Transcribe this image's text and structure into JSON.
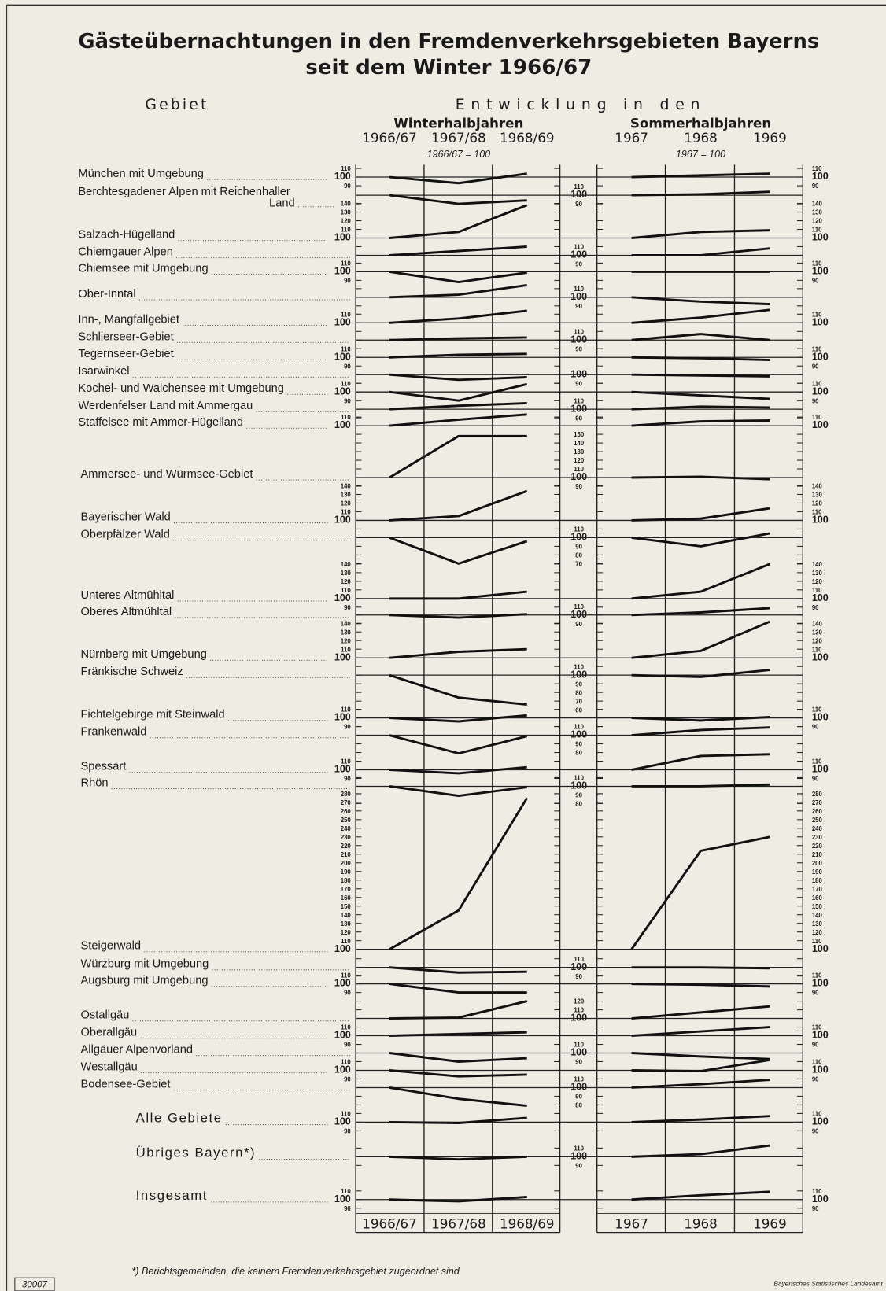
{
  "title": [
    "Gästeübernachtungen in den Fremdenverkehrsgebieten Bayerns",
    "seit dem Winter 1966/67"
  ],
  "column_header": "Gebiet",
  "development_header": "Entwicklung in den",
  "winter_header": "Winterhalbjahren",
  "summer_header": "Sommerhalbjahren",
  "winter_years": [
    "1966/67",
    "1967/68",
    "1968/69"
  ],
  "summer_years": [
    "1967",
    "1968",
    "1969"
  ],
  "winter_note": "1966/67 = 100",
  "summer_note": "1967 = 100",
  "index_base": 100,
  "footnote": "*) Berichtsgemeinden, die keinem Fremdenverkehrsgebiet zugeordnet sind",
  "sheet_number": "30007",
  "publisher": "Bayerisches Statistisches Landesamt",
  "regions": [
    {
      "name": "München mit Umgebung",
      "winter": [
        100,
        93,
        104
      ],
      "summer": [
        100,
        102,
        104
      ],
      "scale": [
        110,
        100,
        90
      ]
    },
    {
      "name": [
        "Berchtesgadener Alpen mit Reichenhaller",
        "Land"
      ],
      "winter": [
        100,
        90,
        94
      ],
      "summer": [
        100,
        101,
        104
      ],
      "scale": [
        110,
        100,
        90
      ]
    },
    {
      "name": "Salzach-Hügelland",
      "winter": [
        100,
        107,
        138
      ],
      "summer": [
        100,
        107,
        109
      ],
      "scale": [
        140,
        130,
        120,
        110,
        100
      ]
    },
    {
      "name": "Chiemgauer Alpen",
      "winter": [
        100,
        105,
        110
      ],
      "summer": [
        100,
        100,
        108
      ],
      "scale": [
        110,
        100,
        90
      ]
    },
    {
      "name": "Chiemsee mit Umgebung",
      "winter": [
        100,
        88,
        99
      ],
      "summer": [
        100,
        100,
        100
      ],
      "scale": [
        110,
        100,
        90
      ]
    },
    {
      "name": "Ober-Inntal",
      "winter": [
        100,
        103,
        114
      ],
      "summer": [
        100,
        95,
        92
      ],
      "scale": [
        110,
        100,
        90
      ]
    },
    {
      "name": "Inn-, Mangfallgebiet",
      "winter": [
        100,
        105,
        114
      ],
      "summer": [
        100,
        106,
        115
      ],
      "scale": [
        110,
        100
      ]
    },
    {
      "name": "Schlierseer-Gebiet",
      "winter": [
        100,
        102,
        103
      ],
      "summer": [
        100,
        107,
        100
      ],
      "scale": [
        110,
        100,
        90
      ]
    },
    {
      "name": "Tegernseer-Gebiet",
      "winter": [
        100,
        103,
        104
      ],
      "summer": [
        100,
        99,
        97
      ],
      "scale": [
        110,
        100,
        90
      ]
    },
    {
      "name": "Isarwinkel",
      "winter": [
        100,
        94,
        97
      ],
      "summer": [
        100,
        99,
        98
      ],
      "scale": [
        100,
        90
      ]
    },
    {
      "name": "Kochel- und Walchensee mit Umgebung",
      "winter": [
        100,
        90,
        109
      ],
      "summer": [
        100,
        96,
        92
      ],
      "scale": [
        110,
        100,
        90
      ]
    },
    {
      "name": "Werdenfelser Land mit Ammergau",
      "winter": [
        100,
        104,
        107
      ],
      "summer": [
        100,
        103,
        102
      ],
      "scale": [
        110,
        100,
        90
      ]
    },
    {
      "name": "Staffelsee mit Ammer-Hügelland",
      "winter": [
        100,
        107,
        113
      ],
      "summer": [
        100,
        105,
        106
      ],
      "scale": [
        110,
        100
      ]
    },
    {
      "name": "Ammersee- und Würmsee-Gebiet",
      "winter": [
        100,
        148,
        148
      ],
      "summer": [
        100,
        101,
        98
      ],
      "scale": [
        150,
        140,
        130,
        120,
        110,
        100,
        90
      ]
    },
    {
      "name": "Bayerischer Wald",
      "winter": [
        100,
        105,
        134
      ],
      "summer": [
        100,
        102,
        114
      ],
      "scale": [
        140,
        130,
        120,
        110,
        100
      ]
    },
    {
      "name": "Oberpfälzer Wald",
      "winter": [
        100,
        70,
        96
      ],
      "summer": [
        100,
        90,
        105
      ],
      "scale": [
        110,
        100,
        90,
        80,
        70
      ]
    },
    {
      "name": "Unteres Altmühltal",
      "winter": [
        100,
        100,
        108
      ],
      "summer": [
        100,
        108,
        140
      ],
      "scale": [
        140,
        130,
        120,
        110,
        100,
        90
      ]
    },
    {
      "name": "Oberes Altmühltal",
      "winter": [
        100,
        97,
        101
      ],
      "summer": [
        100,
        103,
        108
      ],
      "scale": [
        110,
        100,
        90
      ]
    },
    {
      "name": "Nürnberg mit Umgebung",
      "winter": [
        100,
        107,
        110
      ],
      "summer": [
        100,
        108,
        142
      ],
      "scale": [
        140,
        130,
        120,
        110,
        100
      ]
    },
    {
      "name": "Fränkische Schweiz",
      "winter": [
        100,
        74,
        66
      ],
      "summer": [
        100,
        98,
        106
      ],
      "scale": [
        110,
        100,
        90,
        80,
        70,
        60
      ]
    },
    {
      "name": "Fichtelgebirge mit Steinwald",
      "winter": [
        100,
        96,
        103
      ],
      "summer": [
        100,
        97,
        101
      ],
      "scale": [
        110,
        100,
        90
      ]
    },
    {
      "name": "Frankenwald",
      "winter": [
        100,
        79,
        99
      ],
      "summer": [
        100,
        106,
        109
      ],
      "scale": [
        110,
        100,
        90,
        80
      ]
    },
    {
      "name": "Spessart",
      "winter": [
        100,
        96,
        103
      ],
      "summer": [
        100,
        116,
        118
      ],
      "scale": [
        110,
        100,
        90
      ]
    },
    {
      "name": "Rhön",
      "winter": [
        100,
        89,
        99
      ],
      "summer": [
        100,
        100,
        102
      ],
      "scale": [
        110,
        100,
        90,
        80
      ]
    },
    {
      "name": "Steigerwald",
      "winter": [
        100,
        145,
        275
      ],
      "summer": [
        100,
        214,
        230
      ],
      "scale": [
        280,
        270,
        260,
        250,
        240,
        230,
        220,
        210,
        200,
        190,
        180,
        170,
        160,
        150,
        140,
        130,
        120,
        110,
        100
      ]
    },
    {
      "name": "Würzburg mit Umgebung",
      "winter": [
        100,
        94,
        95
      ],
      "summer": [
        100,
        100,
        99
      ],
      "scale": [
        110,
        100,
        90
      ]
    },
    {
      "name": "Augsburg mit Umgebung",
      "winter": [
        100,
        90,
        90
      ],
      "summer": [
        100,
        99,
        97
      ],
      "scale": [
        110,
        100,
        90
      ]
    },
    {
      "name": "Ostallgäu",
      "winter": [
        100,
        101,
        120
      ],
      "summer": [
        100,
        107,
        114
      ],
      "scale": [
        120,
        110,
        100
      ]
    },
    {
      "name": "Oberallgäu",
      "winter": [
        100,
        102,
        104
      ],
      "summer": [
        100,
        105,
        110
      ],
      "scale": [
        110,
        100,
        90
      ]
    },
    {
      "name": "Allgäuer Alpenvorland",
      "winter": [
        100,
        90,
        94
      ],
      "summer": [
        100,
        96,
        93
      ],
      "scale": [
        110,
        100,
        90
      ]
    },
    {
      "name": "Westallgäu",
      "winter": [
        100,
        93,
        95
      ],
      "summer": [
        100,
        99,
        112
      ],
      "scale": [
        110,
        100,
        90
      ]
    },
    {
      "name": "Bodensee-Gebiet",
      "winter": [
        100,
        87,
        79
      ],
      "summer": [
        100,
        104,
        109
      ],
      "scale": [
        110,
        100,
        90,
        80
      ]
    },
    {
      "name": "Alle Gebiete",
      "winter": [
        100,
        99,
        105
      ],
      "summer": [
        100,
        103,
        107
      ],
      "scale": [
        110,
        100,
        90
      ],
      "emphasis": true
    },
    {
      "name": "Übriges Bayern*)",
      "winter": [
        100,
        97,
        100
      ],
      "summer": [
        100,
        103,
        113
      ],
      "scale": [
        110,
        100,
        90
      ],
      "emphasis": true
    },
    {
      "name": "Insgesamt",
      "winter": [
        100,
        98,
        103
      ],
      "summer": [
        100,
        105,
        109
      ],
      "scale": [
        110,
        100,
        90
      ],
      "emphasis": true
    }
  ]
}
